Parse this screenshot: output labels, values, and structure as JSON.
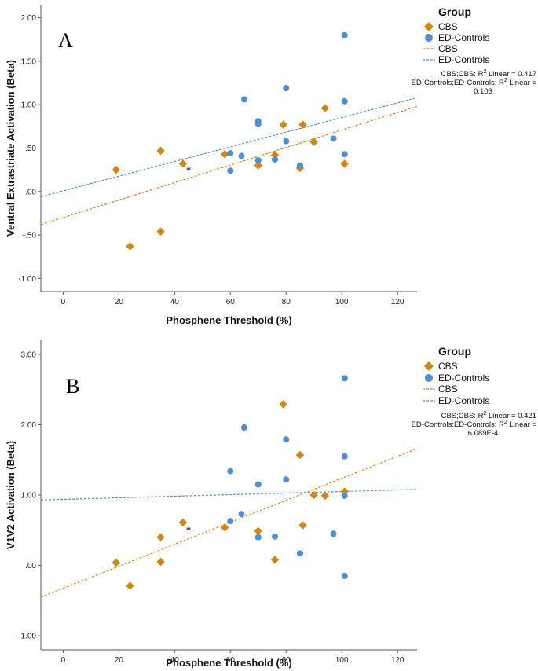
{
  "colors": {
    "cbs": "#d4860b",
    "ed": "#4a90d9",
    "axis": "#555555"
  },
  "legend": {
    "title": "Group",
    "items": [
      {
        "label": "CBS",
        "kind": "diamond",
        "color_key": "cbs"
      },
      {
        "label": "ED-Controls",
        "kind": "circle",
        "color_key": "ed"
      },
      {
        "label": "CBS",
        "kind": "dashed-line",
        "color_key": "cbs"
      },
      {
        "label": "ED-Controls",
        "kind": "dashed-line",
        "color_key": "ed"
      }
    ]
  },
  "chart_data": [
    {
      "type": "scatter",
      "panel_label": "A",
      "xlabel": "Phosphene Threshold (%)",
      "ylabel": "Ventral Extrastriate Activation (Beta)",
      "xlim": [
        -8,
        127
      ],
      "ylim": [
        -1.15,
        2.15
      ],
      "xticks": [
        0,
        20,
        40,
        60,
        80,
        100,
        120
      ],
      "yticks": [
        -1.0,
        -0.5,
        0.0,
        0.5,
        1.0,
        1.5,
        2.0
      ],
      "ytick_labels": [
        "-1.00",
        "-.50",
        ".00",
        ".50",
        "1.00",
        "1.50",
        "2.00"
      ],
      "grid": false,
      "legend_position": "right",
      "annotation": {
        "text": "*",
        "x": 45,
        "y": 0.27
      },
      "series": [
        {
          "name": "CBS",
          "marker": "diamond",
          "color_key": "cbs",
          "points": [
            [
              19,
              0.25
            ],
            [
              24,
              -0.63
            ],
            [
              35,
              0.47
            ],
            [
              35,
              -0.46
            ],
            [
              43,
              0.32
            ],
            [
              58,
              0.43
            ],
            [
              70,
              0.3
            ],
            [
              76,
              0.42
            ],
            [
              79,
              0.77
            ],
            [
              85,
              0.27
            ],
            [
              86,
              0.77
            ],
            [
              90,
              0.57
            ],
            [
              94,
              0.96
            ],
            [
              101,
              0.32
            ]
          ],
          "fit": {
            "x": [
              -8,
              127
            ],
            "y": [
              -0.38,
              0.98
            ]
          },
          "r2_text": [
            "CBS;CBS: R",
            "2",
            " Linear = 0.417"
          ]
        },
        {
          "name": "ED-Controls",
          "marker": "circle",
          "color_key": "ed",
          "points": [
            [
              60,
              0.24
            ],
            [
              60,
              0.44
            ],
            [
              64,
              0.41
            ],
            [
              65,
              1.06
            ],
            [
              70,
              0.81
            ],
            [
              70,
              0.78
            ],
            [
              70,
              0.36
            ],
            [
              76,
              0.37
            ],
            [
              80,
              1.19
            ],
            [
              80,
              0.58
            ],
            [
              85,
              0.3
            ],
            [
              97,
              0.61
            ],
            [
              101,
              1.8
            ],
            [
              101,
              1.04
            ],
            [
              101,
              0.43
            ]
          ],
          "fit": {
            "x": [
              -8,
              127
            ],
            "y": [
              -0.06,
              1.08
            ]
          },
          "r2_text": [
            "ED-Controls;ED-Controls: R",
            "2",
            " Linear =",
            "0.103"
          ]
        }
      ]
    },
    {
      "type": "scatter",
      "panel_label": "B",
      "xlabel": "Phosphene Threshold (%)",
      "ylabel": "V1V2 Activation (Beta)",
      "xlim": [
        -8,
        127
      ],
      "ylim": [
        -1.2,
        3.2
      ],
      "xticks": [
        0,
        20,
        40,
        60,
        80,
        100,
        120
      ],
      "yticks": [
        -1.0,
        0.0,
        1.0,
        2.0,
        3.0
      ],
      "ytick_labels": [
        "-1.00",
        ".00",
        "1.00",
        "2.00",
        "3.00"
      ],
      "grid": false,
      "legend_position": "right",
      "annotation": {
        "text": "*",
        "x": 45,
        "y": 0.53
      },
      "series": [
        {
          "name": "CBS",
          "marker": "diamond",
          "color_key": "cbs",
          "points": [
            [
              19,
              0.04
            ],
            [
              24,
              -0.29
            ],
            [
              35,
              0.4
            ],
            [
              35,
              0.05
            ],
            [
              43,
              0.61
            ],
            [
              58,
              0.54
            ],
            [
              70,
              0.49
            ],
            [
              76,
              0.08
            ],
            [
              79,
              2.29
            ],
            [
              85,
              1.57
            ],
            [
              86,
              0.57
            ],
            [
              90,
              1.0
            ],
            [
              94,
              0.99
            ],
            [
              101,
              1.05
            ]
          ],
          "fit": {
            "x": [
              -8,
              127
            ],
            "y": [
              -0.45,
              1.66
            ]
          },
          "r2_text": [
            "CBS;CBS: R",
            "2",
            " Linear = 0.421"
          ]
        },
        {
          "name": "ED-Controls",
          "marker": "circle",
          "color_key": "ed",
          "points": [
            [
              60,
              1.34
            ],
            [
              60,
              0.63
            ],
            [
              64,
              0.73
            ],
            [
              65,
              1.96
            ],
            [
              70,
              1.15
            ],
            [
              70,
              0.4
            ],
            [
              76,
              0.41
            ],
            [
              80,
              1.79
            ],
            [
              80,
              1.22
            ],
            [
              85,
              0.17
            ],
            [
              97,
              0.45
            ],
            [
              101,
              2.66
            ],
            [
              101,
              1.55
            ],
            [
              101,
              0.99
            ],
            [
              101,
              -0.15
            ]
          ],
          "fit": {
            "x": [
              -8,
              127
            ],
            "y": [
              0.93,
              1.08
            ]
          },
          "r2_text": [
            "ED-Controls;ED-Controls: R",
            "2",
            " Linear =",
            "6.089E-4"
          ]
        }
      ]
    }
  ]
}
